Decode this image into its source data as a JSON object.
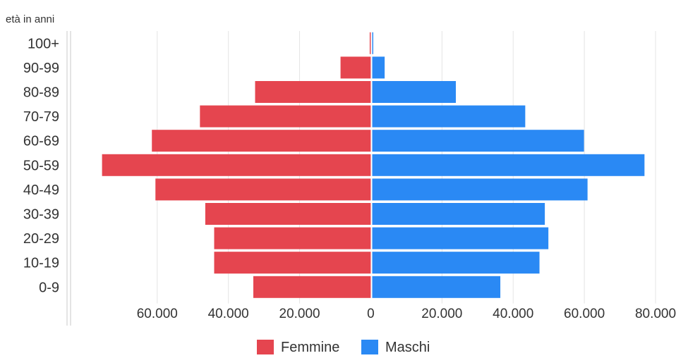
{
  "chart_data": {
    "type": "bar",
    "orientation": "horizontal",
    "subtype": "population-pyramid",
    "ylabel": "età in anni",
    "categories": [
      "0-9",
      "10-19",
      "20-29",
      "30-39",
      "40-49",
      "50-59",
      "60-69",
      "70-79",
      "80-89",
      "90-99",
      "100+"
    ],
    "series": [
      {
        "name": "Femmine",
        "color": "#e5454f",
        "side": "left",
        "values": [
          33000,
          44000,
          44000,
          46500,
          60500,
          75500,
          61500,
          48000,
          32500,
          8500,
          300
        ]
      },
      {
        "name": "Maschi",
        "color": "#2a89f4",
        "side": "right",
        "values": [
          36000,
          47000,
          49500,
          48500,
          60500,
          76500,
          59500,
          43000,
          23500,
          3500,
          300
        ]
      }
    ],
    "xticks": [
      {
        "value": -60000,
        "label": "60.000"
      },
      {
        "value": -40000,
        "label": "40.000"
      },
      {
        "value": -20000,
        "label": "20.000"
      },
      {
        "value": 0,
        "label": "0"
      },
      {
        "value": 20000,
        "label": "20.000"
      },
      {
        "value": 40000,
        "label": "40.000"
      },
      {
        "value": 60000,
        "label": "60.000"
      },
      {
        "value": 80000,
        "label": "80.000"
      }
    ],
    "xlim": [
      -78000,
      80000
    ],
    "grid": true,
    "legend_position": "bottom-center"
  }
}
